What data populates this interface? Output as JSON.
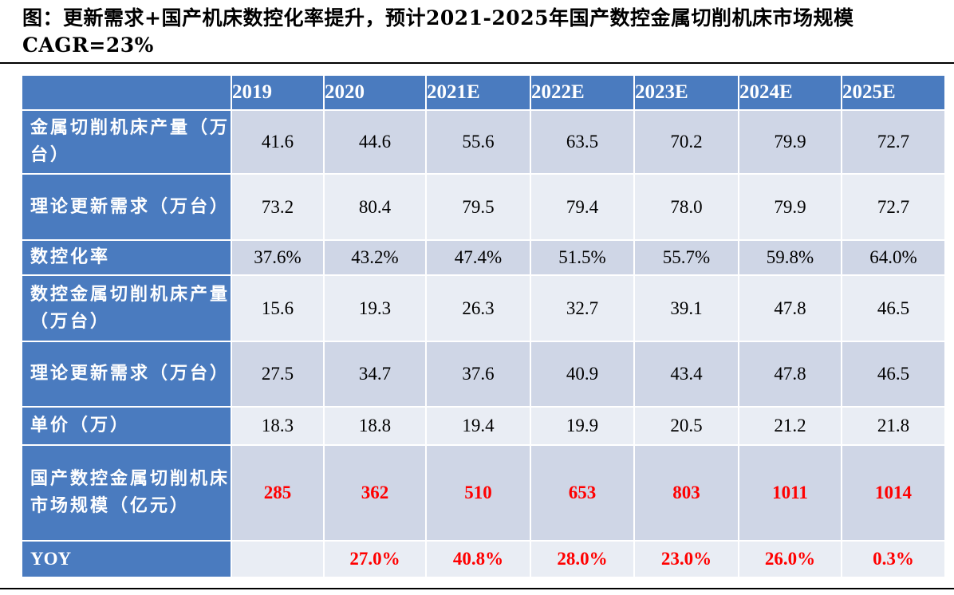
{
  "title": "图：更新需求+国产机床数控化率提升，预计2021-2025年国产数控金属切削机床市场规模CAGR=23%",
  "columns": [
    "",
    "2019",
    "2020",
    "2021E",
    "2022E",
    "2023E",
    "2024E",
    "2025E"
  ],
  "rows": [
    {
      "label": "金属切削机床产量（万台）",
      "values": [
        "41.6",
        "44.6",
        "55.6",
        "63.5",
        "70.2",
        "79.9",
        "72.7"
      ]
    },
    {
      "label": "理论更新需求（万台）",
      "values": [
        "73.2",
        "80.4",
        "79.5",
        "79.4",
        "78.0",
        "79.9",
        "72.7"
      ]
    },
    {
      "label": "数控化率",
      "values": [
        "37.6%",
        "43.2%",
        "47.4%",
        "51.5%",
        "55.7%",
        "59.8%",
        "64.0%"
      ]
    },
    {
      "label": "数控金属切削机床产量（万台）",
      "values": [
        "15.6",
        "19.3",
        "26.3",
        "32.7",
        "39.1",
        "47.8",
        "46.5"
      ]
    },
    {
      "label": "理论更新需求（万台）",
      "values": [
        "27.5",
        "34.7",
        "37.6",
        "40.9",
        "43.4",
        "47.8",
        "46.5"
      ]
    },
    {
      "label": "单价（万）",
      "values": [
        "18.3",
        "18.8",
        "19.4",
        "19.9",
        "20.5",
        "21.2",
        "21.8"
      ]
    },
    {
      "label": "国产数控金属切削机床市场规模（亿元）",
      "values": [
        "285",
        "362",
        "510",
        "653",
        "803",
        "1011",
        "1014"
      ]
    },
    {
      "label": "YOY",
      "values": [
        "",
        "27.0%",
        "40.8%",
        "28.0%",
        "23.0%",
        "26.0%",
        "0.3%"
      ]
    }
  ],
  "colors": {
    "header_bg": "#4a7bbf",
    "row_dark": "#cfd6e6",
    "row_light": "#e9edf4",
    "highlight_text": "#ff0000"
  }
}
